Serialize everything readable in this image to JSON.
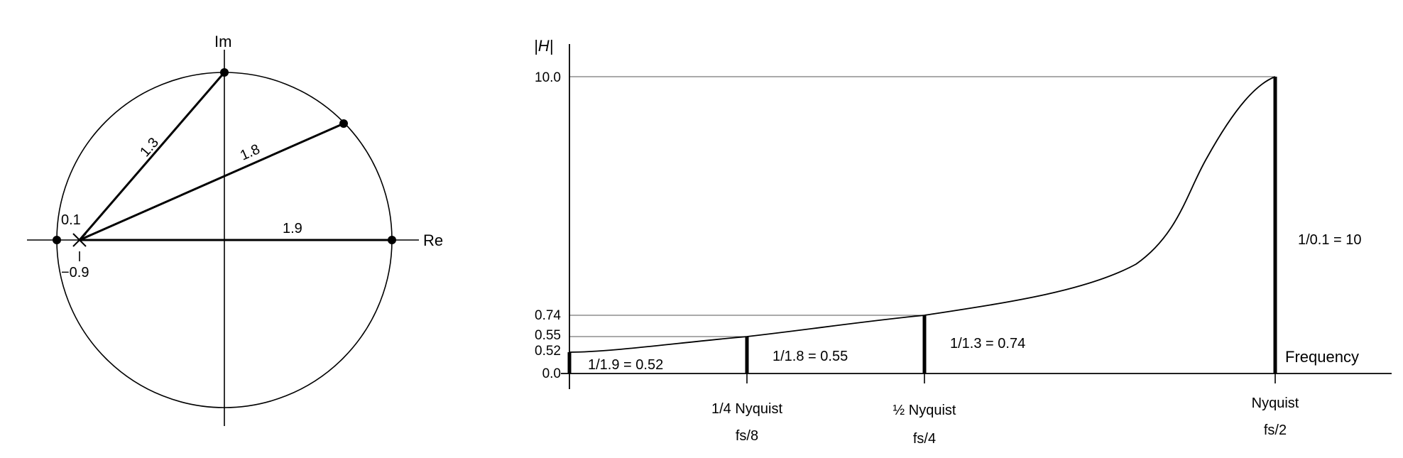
{
  "pole_zero": {
    "im_label": "Im",
    "re_label": "Re",
    "pole_label": "0.1",
    "zero_label": "−0.9",
    "distances": [
      "1.3",
      "1.8",
      "1.9"
    ]
  },
  "magnitude": {
    "y_label": "|H|",
    "x_label": "Frequency",
    "y_ticks": [
      "10.0",
      "0.74",
      "0.55",
      "0.52",
      "0.0"
    ],
    "bar_labels": [
      "1/1.9 = 0.52",
      "1/1.8 = 0.55",
      "1/1.3 = 0.74",
      "1/0.1 = 10"
    ],
    "x_ticks": [
      {
        "line1": "1/4 Nyquist",
        "line2": "fs/8"
      },
      {
        "line1": "½ Nyquist",
        "line2": "fs/4"
      },
      {
        "line1": "Nyquist",
        "line2": "fs/2"
      }
    ]
  },
  "colors": {
    "ink": "#000000",
    "guide": "#555555"
  }
}
